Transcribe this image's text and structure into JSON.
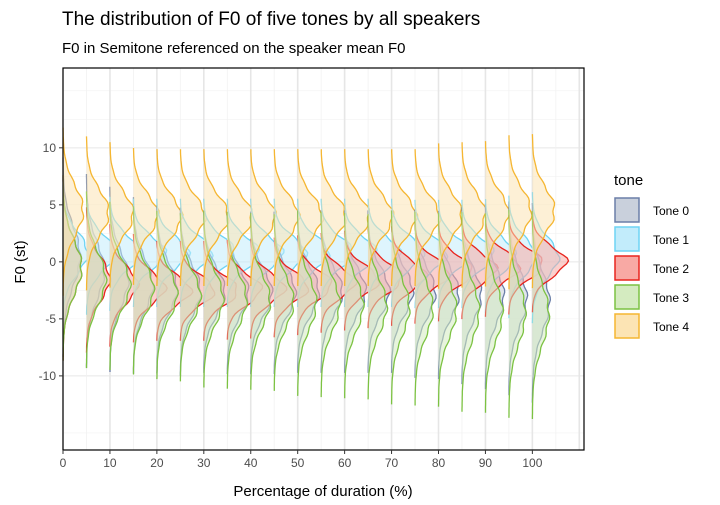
{
  "chart_data": {
    "type": "ridgeline",
    "title": "The distribution of F0 of five tones by all speakers",
    "subtitle": "F0 in Semitone referenced on the speaker mean F0",
    "xlabel": "Percentage of duration (%)",
    "ylabel": "F0 (st)",
    "xlim": [
      0,
      111
    ],
    "ylim": [
      -16.5,
      17
    ],
    "x_ticks": [
      0,
      10,
      20,
      30,
      40,
      50,
      60,
      70,
      80,
      90,
      100
    ],
    "x_tick_labels": [
      "0",
      "10",
      "20",
      "30",
      "40",
      "50",
      "60",
      "70",
      "80",
      "90",
      "100"
    ],
    "y_ticks": [
      10,
      5,
      0,
      -5,
      -10
    ],
    "y_tick_labels": [
      "10",
      "5",
      "0",
      "-5",
      "-10"
    ],
    "x": [
      0,
      5,
      10,
      15,
      20,
      25,
      30,
      35,
      40,
      45,
      50,
      55,
      60,
      65,
      70,
      75,
      80,
      85,
      90,
      95,
      100
    ],
    "grid": true,
    "legend_position": "right",
    "legend_title": "tone",
    "series": [
      {
        "name": "Tone 0",
        "stroke": "#6b7fa8",
        "fill": "#c9d0dc",
        "mean": [
          0.5,
          -0.8,
          -1.5,
          -2.0,
          -2.3,
          -2.5,
          -2.6,
          -2.7,
          -2.7,
          -2.7,
          -2.6,
          -2.6,
          -2.6,
          -2.6,
          -2.6,
          -2.7,
          -2.8,
          -2.9,
          -3.0,
          -3.2,
          -3.5
        ],
        "sd": [
          2.6,
          2.5,
          2.4,
          2.3,
          2.2,
          2.2,
          2.1,
          2.1,
          2.1,
          2.1,
          2.1,
          2.1,
          2.1,
          2.1,
          2.1,
          2.2,
          2.2,
          2.3,
          2.4,
          2.5,
          2.6
        ]
      },
      {
        "name": "Tone 1",
        "stroke": "#6ed4f4",
        "fill": "#c2ecfb",
        "mean": [
          0.8,
          0.8,
          0.8,
          0.8,
          0.8,
          0.8,
          0.8,
          0.8,
          0.8,
          0.8,
          0.8,
          0.8,
          0.8,
          0.8,
          0.8,
          0.7,
          0.7,
          0.7,
          0.6,
          0.5,
          0.4
        ],
        "sd": [
          1.8,
          1.6,
          1.5,
          1.4,
          1.4,
          1.4,
          1.4,
          1.4,
          1.4,
          1.4,
          1.4,
          1.4,
          1.4,
          1.4,
          1.4,
          1.4,
          1.4,
          1.4,
          1.5,
          1.6,
          1.7
        ]
      },
      {
        "name": "Tone 2",
        "stroke": "#e8251e",
        "fill": "#f8a9a4",
        "mean": [
          -0.5,
          -1.5,
          -2.0,
          -2.3,
          -2.5,
          -2.5,
          -2.5,
          -2.4,
          -2.3,
          -2.2,
          -2.0,
          -1.8,
          -1.6,
          -1.4,
          -1.2,
          -1.0,
          -0.8,
          -0.6,
          -0.4,
          -0.2,
          0.0
        ],
        "sd": [
          2.4,
          1.9,
          1.6,
          1.4,
          1.3,
          1.3,
          1.3,
          1.3,
          1.3,
          1.3,
          1.3,
          1.3,
          1.3,
          1.3,
          1.3,
          1.3,
          1.3,
          1.3,
          1.3,
          1.3,
          1.3
        ]
      },
      {
        "name": "Tone 3",
        "stroke": "#7cc242",
        "fill": "#d4ebc0",
        "mean": [
          -0.5,
          -1.5,
          -2.0,
          -2.4,
          -2.8,
          -3.0,
          -3.2,
          -3.3,
          -3.4,
          -3.5,
          -3.6,
          -3.7,
          -3.8,
          -3.9,
          -4.0,
          -4.1,
          -4.2,
          -4.3,
          -4.4,
          -4.5,
          -4.6
        ],
        "sd": [
          2.4,
          2.3,
          2.2,
          2.2,
          2.2,
          2.2,
          2.3,
          2.3,
          2.3,
          2.3,
          2.4,
          2.4,
          2.4,
          2.4,
          2.5,
          2.5,
          2.5,
          2.6,
          2.6,
          2.7,
          2.7
        ]
      },
      {
        "name": "Tone 4",
        "stroke": "#f5b631",
        "fill": "#fce4b4",
        "mean": [
          4.5,
          4.3,
          4.2,
          4.1,
          4.0,
          4.0,
          4.0,
          4.0,
          4.0,
          4.0,
          4.0,
          4.0,
          4.0,
          4.0,
          4.0,
          4.0,
          4.1,
          4.2,
          4.3,
          4.4,
          4.5
        ],
        "sd": [
          2.2,
          2.0,
          1.9,
          1.8,
          1.8,
          1.8,
          1.8,
          1.8,
          1.8,
          1.8,
          1.8,
          1.8,
          1.8,
          1.8,
          1.8,
          1.8,
          1.9,
          1.9,
          1.9,
          2.0,
          2.0
        ]
      }
    ],
    "panel_background": "#ffffff",
    "grid_major_color": "#e6e6e6",
    "grid_minor_color": "#f2f2f2"
  }
}
